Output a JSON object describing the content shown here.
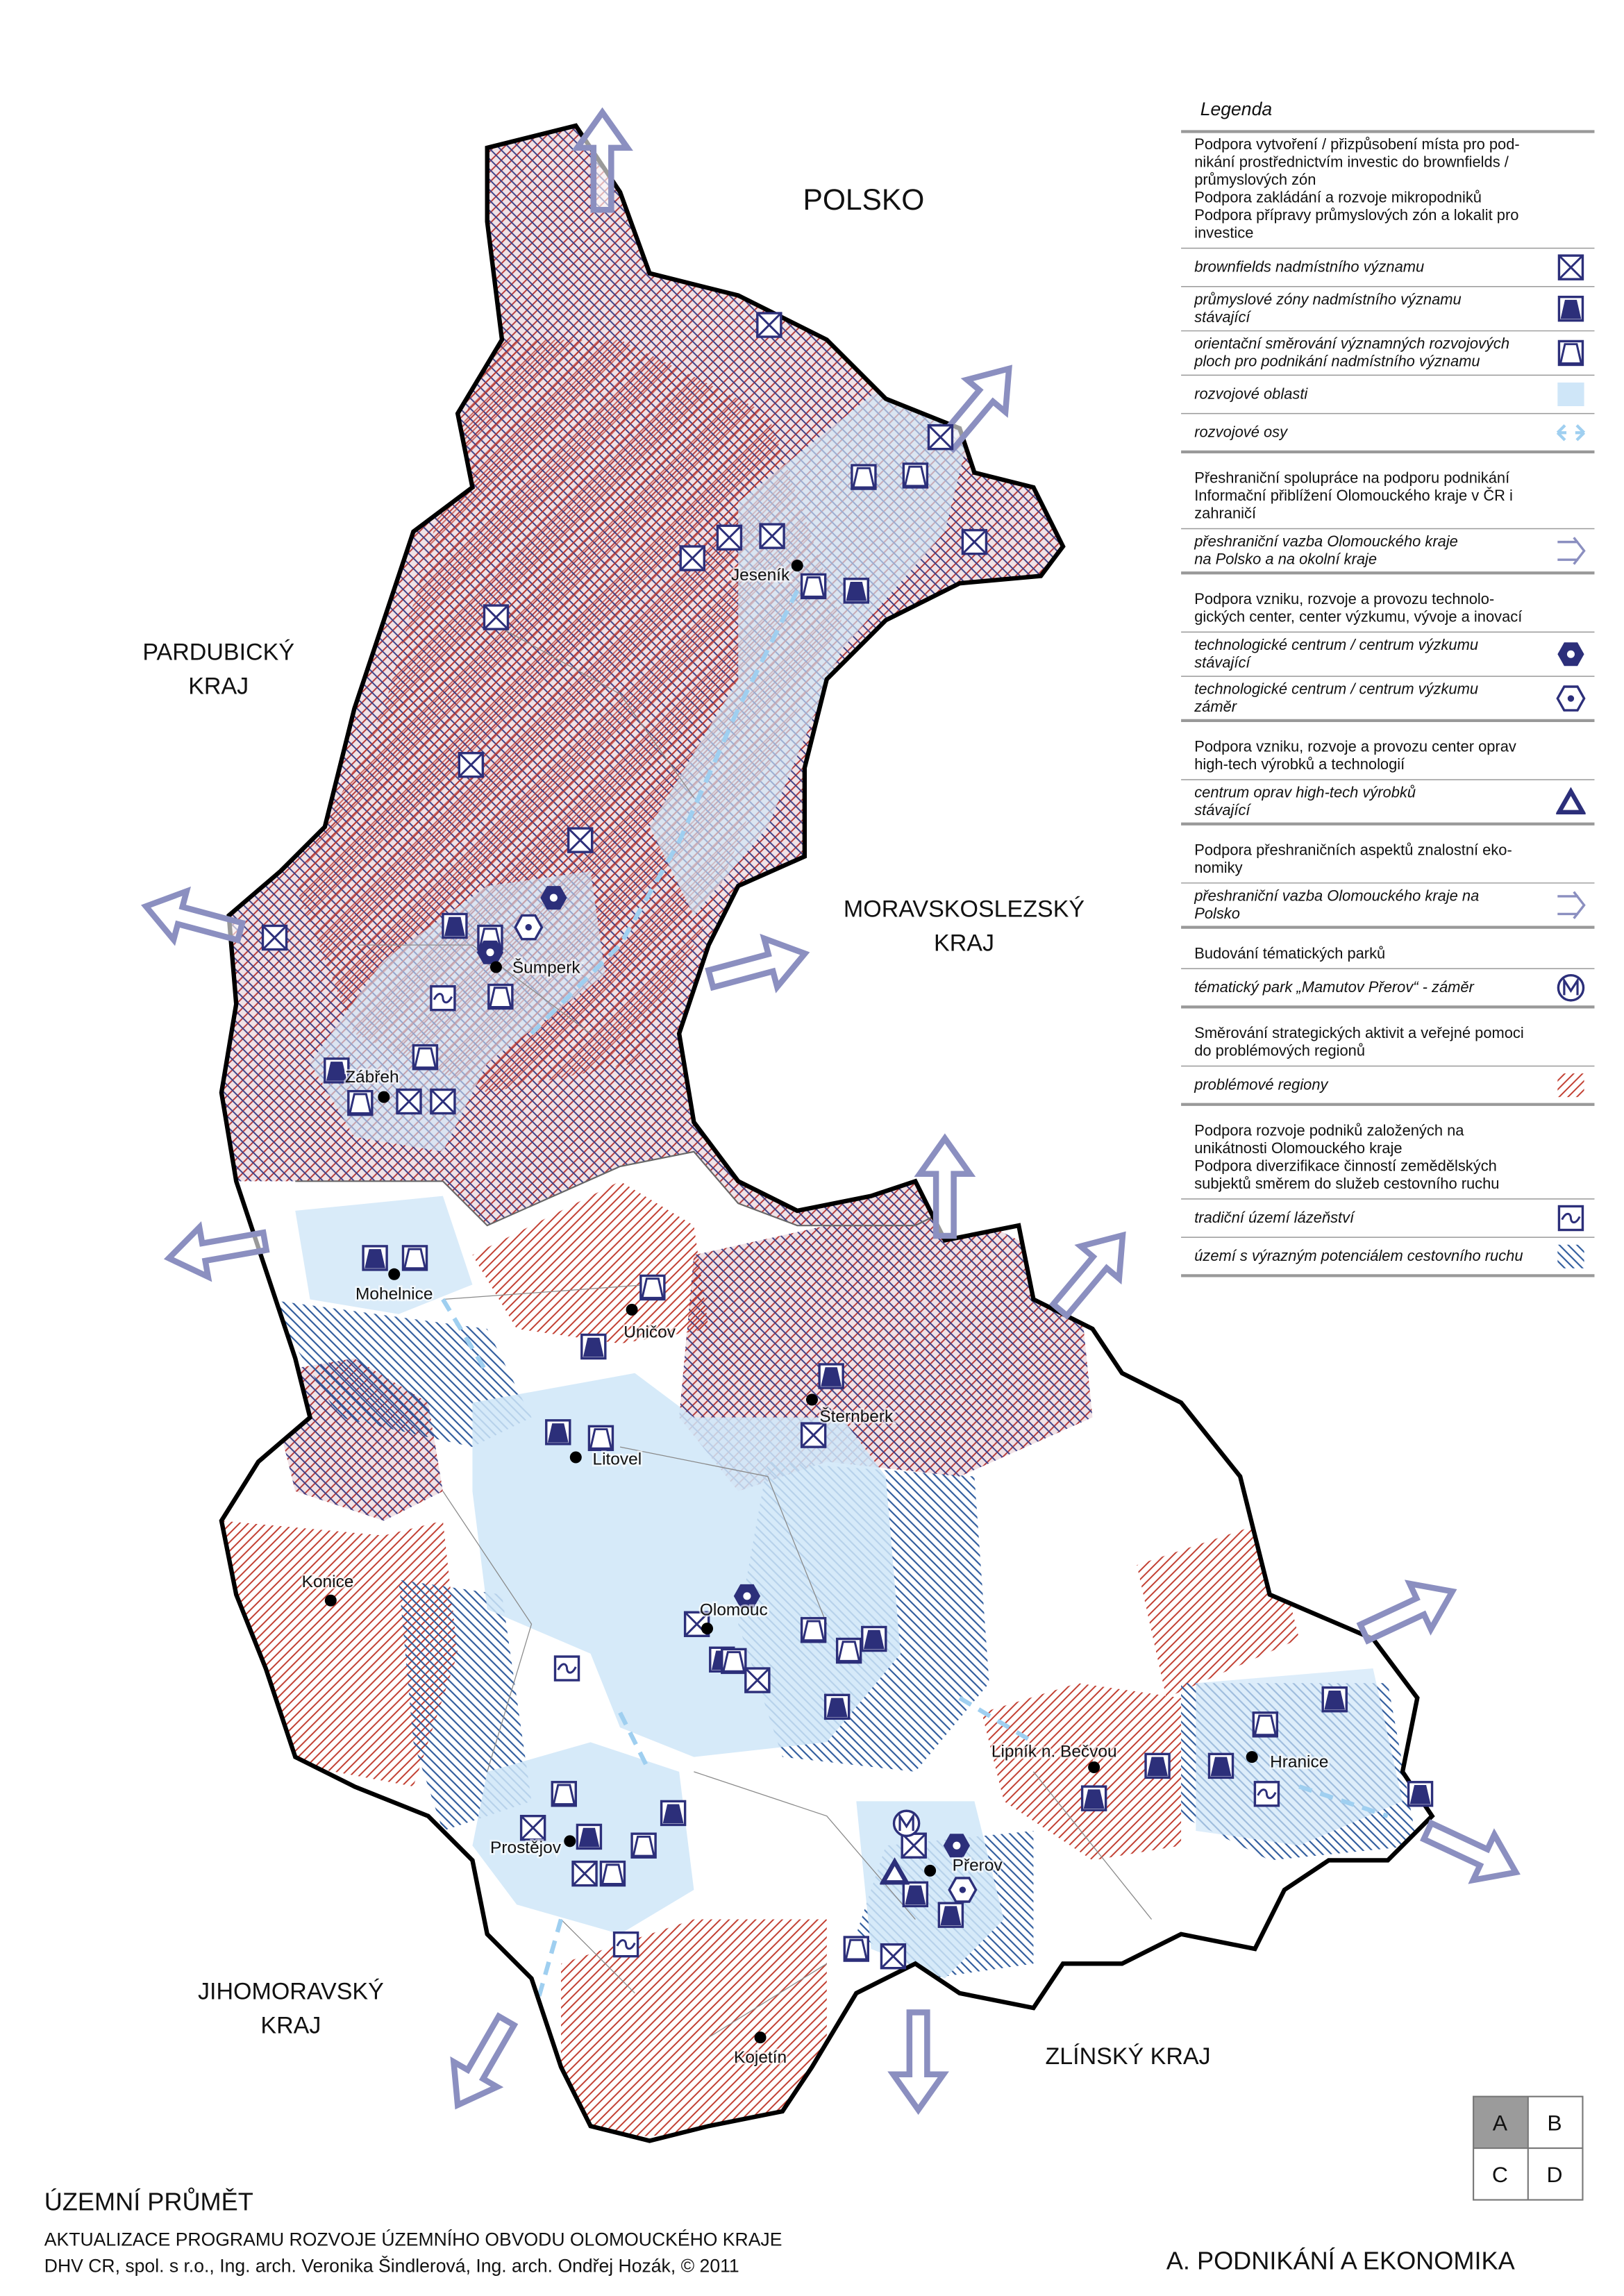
{
  "regions": [
    {
      "lines": [
        "POLSKO"
      ]
    },
    {
      "lines": [
        "PARDUBICKÝ",
        "KRAJ"
      ]
    },
    {
      "lines": [
        "MORAVSKOSLEZSKÝ",
        "KRAJ"
      ]
    },
    {
      "lines": [
        "JIHOMORAVSKÝ",
        "KRAJ"
      ]
    },
    {
      "lines": [
        "ZLÍNSKÝ KRAJ"
      ]
    }
  ],
  "cities": [
    "Jeseník",
    "Šumperk",
    "Zábřeh",
    "Mohelnice",
    "Uničov",
    "Šternberk",
    "Litovel",
    "Olomouc",
    "Konice",
    "Prostějov",
    "Přerov",
    "Lipník n. Bečvou",
    "Hranice",
    "Kojetín"
  ],
  "legend": {
    "title": "Legenda",
    "groups": [
      {
        "header": [
          "Podpora vytvoření / přizpůsobení místa pro pod-",
          "nikání prostřednictvím investic do brownfields /",
          "průmyslových zón",
          "Podpora zakládání a rozvoje mikropodniků",
          "Podpora přípravy průmyslových zón a lokalit pro",
          "investice"
        ],
        "items": [
          {
            "lines": [
              "brownfields nadmístního významu"
            ]
          },
          {
            "lines": [
              "průmyslové zóny nadmístního významu",
              "stávající"
            ]
          },
          {
            "lines": [
              "orientační směrování významných rozvojových",
              "ploch pro podnikání nadmístního významu"
            ]
          },
          {
            "lines": [
              "rozvojové oblasti"
            ]
          },
          {
            "lines": [
              "rozvojové osy"
            ]
          }
        ]
      },
      {
        "header": [
          "Přeshraniční spolupráce na podporu podnikání",
          "Informační přiblížení Olomouckého kraje v ČR i",
          "zahraničí"
        ],
        "items": [
          {
            "lines": [
              "přeshraniční vazba Olomouckého kraje",
              "na Polsko a na okolní kraje"
            ]
          }
        ]
      },
      {
        "header": [
          "Podpora vzniku, rozvoje a provozu technolo-",
          "gických center, center výzkumu, vývoje a inovací"
        ],
        "items": [
          {
            "lines": [
              "technologické centrum / centrum výzkumu",
              "stávající"
            ]
          },
          {
            "lines": [
              "technologické centrum / centrum výzkumu",
              "záměr"
            ]
          }
        ]
      },
      {
        "header": [
          "Podpora vzniku, rozvoje a provozu center oprav",
          "high-tech výrobků a technologií"
        ],
        "items": [
          {
            "lines": [
              "centrum oprav high-tech výrobků",
              "stávající"
            ]
          }
        ]
      },
      {
        "header": [
          "Podpora přeshraničních aspektů znalostní eko-",
          "nomiky"
        ],
        "items": [
          {
            "lines": [
              "přeshraniční vazba Olomouckého kraje na",
              "Polsko"
            ]
          }
        ]
      },
      {
        "header": [
          "Budování tématických parků"
        ],
        "items": [
          {
            "lines": [
              "tématický park „Mamutov Přerov“ - záměr"
            ]
          }
        ]
      },
      {
        "header": [
          "Směrování strategických aktivit a veřejné pomoci",
          "do problémových regionů"
        ],
        "items": [
          {
            "lines": [
              "problémové regiony"
            ]
          }
        ]
      },
      {
        "header": [
          "Podpora rozvoje podniků založených na",
          "unikátnosti Olomouckého kraje",
          "Podpora diverzifikace činností zemědělských",
          "subjektů směrem do služeb cestovního ruchu"
        ],
        "items": [
          {
            "lines": [
              "tradiční území lázeňství"
            ]
          },
          {
            "lines": [
              "území s výrazným potenciálem cestovního ruchu"
            ]
          }
        ]
      }
    ]
  },
  "footer": {
    "title": "ÚZEMNÍ PRŮMĚT",
    "lines": [
      "AKTUALIZACE PROGRAMU ROZVOJE ÚZEMNÍHO OBVODU OLOMOUCKÉHO KRAJE",
      "DHV CR, spol. s r.o., Ing. arch. Veronika Šindlerová, Ing. arch. Ondřej Hozák, © 2011"
    ],
    "section": "A. PODNIKÁNÍ A EKONOMIKA"
  },
  "grid": [
    "A",
    "B",
    "C",
    "D"
  ]
}
